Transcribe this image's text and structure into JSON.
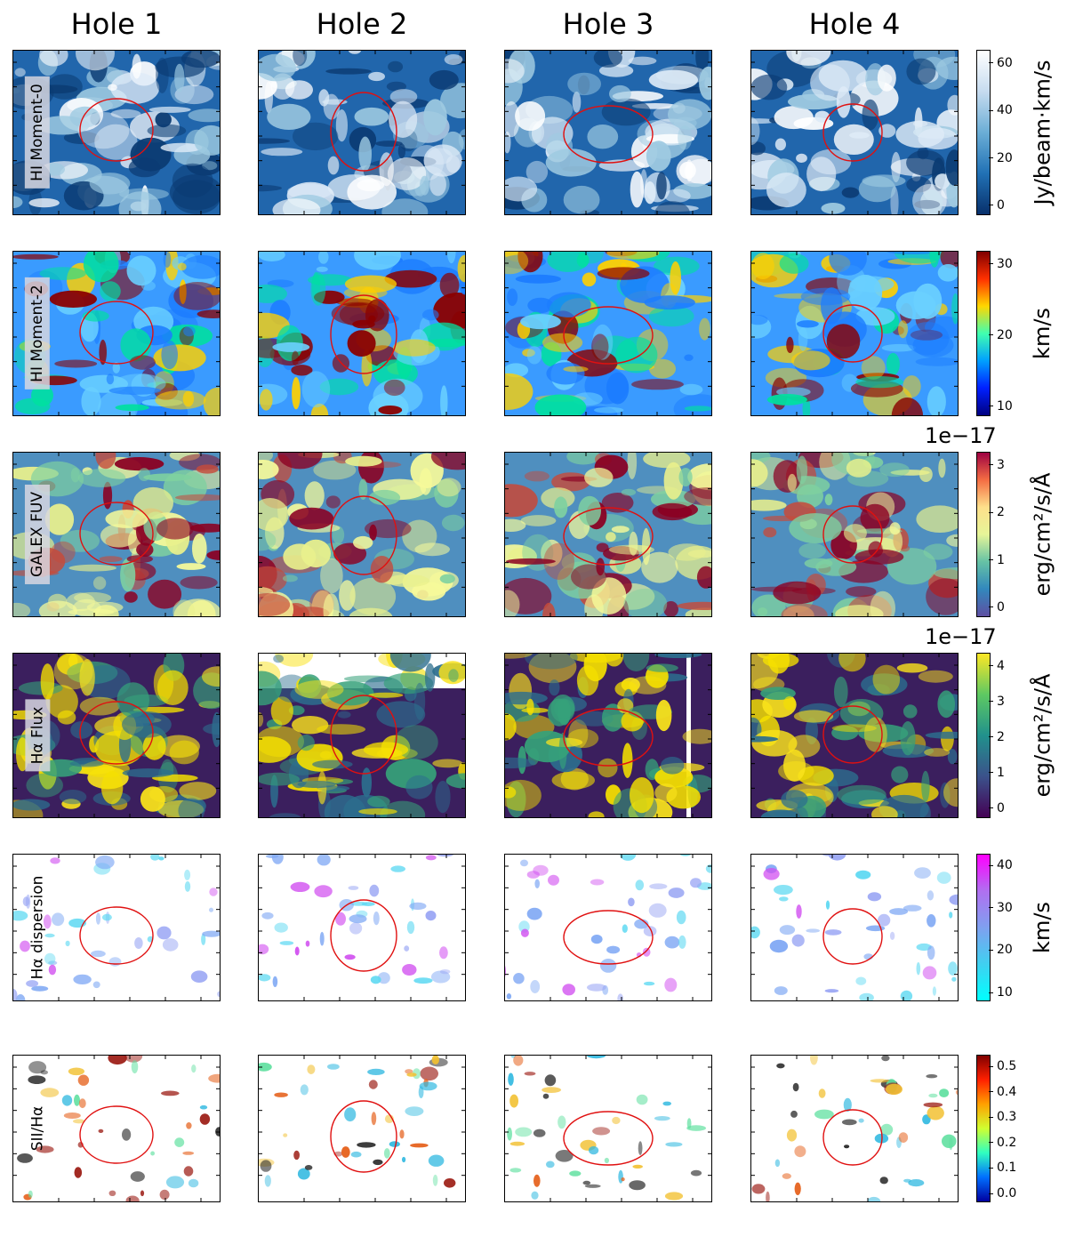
{
  "columns": [
    "Hole 1",
    "Hole 2",
    "Hole 3",
    "Hole 4"
  ],
  "rows": [
    {
      "label": "HI Moment-0",
      "boxed": true,
      "kind": "moment0",
      "colorbar": {
        "label": "Jy/beam·km/s",
        "ticks": [
          "60",
          "40",
          "20",
          "0"
        ],
        "exponent": "",
        "colors": [
          "#ffffff",
          "#c6dbef",
          "#6baed6",
          "#2171b5",
          "#08306b"
        ]
      }
    },
    {
      "label": "HI Moment-2",
      "boxed": true,
      "kind": "moment2",
      "colorbar": {
        "label": "km/s",
        "ticks": [
          "30",
          "20",
          "10"
        ],
        "exponent": "",
        "colors": [
          "#800000",
          "#ff3000",
          "#ffd700",
          "#40ffb0",
          "#00a0ff",
          "#0020ff",
          "#000080"
        ]
      }
    },
    {
      "label": "GALEX FUV",
      "boxed": true,
      "kind": "fuv",
      "colorbar": {
        "label": "erg/cm²/s/Å",
        "ticks": [
          "3",
          "2",
          "1",
          "0"
        ],
        "exponent": "1e−17",
        "colors": [
          "#9e0142",
          "#f46d43",
          "#fee08b",
          "#e6f598",
          "#66c2a5",
          "#3288bd",
          "#5e4fa2"
        ]
      }
    },
    {
      "label": "Hα Flux",
      "boxed": true,
      "kind": "halpha",
      "colorbar": {
        "label": "erg/cm²/s/Å",
        "ticks": [
          "4",
          "3",
          "2",
          "1",
          "0"
        ],
        "exponent": "1e−17",
        "colors": [
          "#fde725",
          "#5ec962",
          "#21918c",
          "#3b528b",
          "#440154"
        ]
      }
    },
    {
      "label": "Hα dispersion",
      "boxed": false,
      "kind": "disp",
      "colorbar": {
        "label": "km/s",
        "ticks": [
          "40",
          "30",
          "20",
          "10"
        ],
        "exponent": "",
        "colors": [
          "#ff00ff",
          "#b070f0",
          "#7fa0f0",
          "#40d0f0",
          "#00ffff"
        ]
      }
    },
    {
      "label": "SII/Hα",
      "boxed": false,
      "kind": "sii",
      "colorbar": {
        "label": "",
        "ticks": [
          "0.5",
          "0.4",
          "0.3",
          "0.2",
          "0.1",
          "0.0"
        ],
        "exponent": "",
        "colors": [
          "#800000",
          "#ff2000",
          "#ffa000",
          "#d0ff30",
          "#30ffc0",
          "#0070ff",
          "#0000a0"
        ]
      }
    }
  ]
}
